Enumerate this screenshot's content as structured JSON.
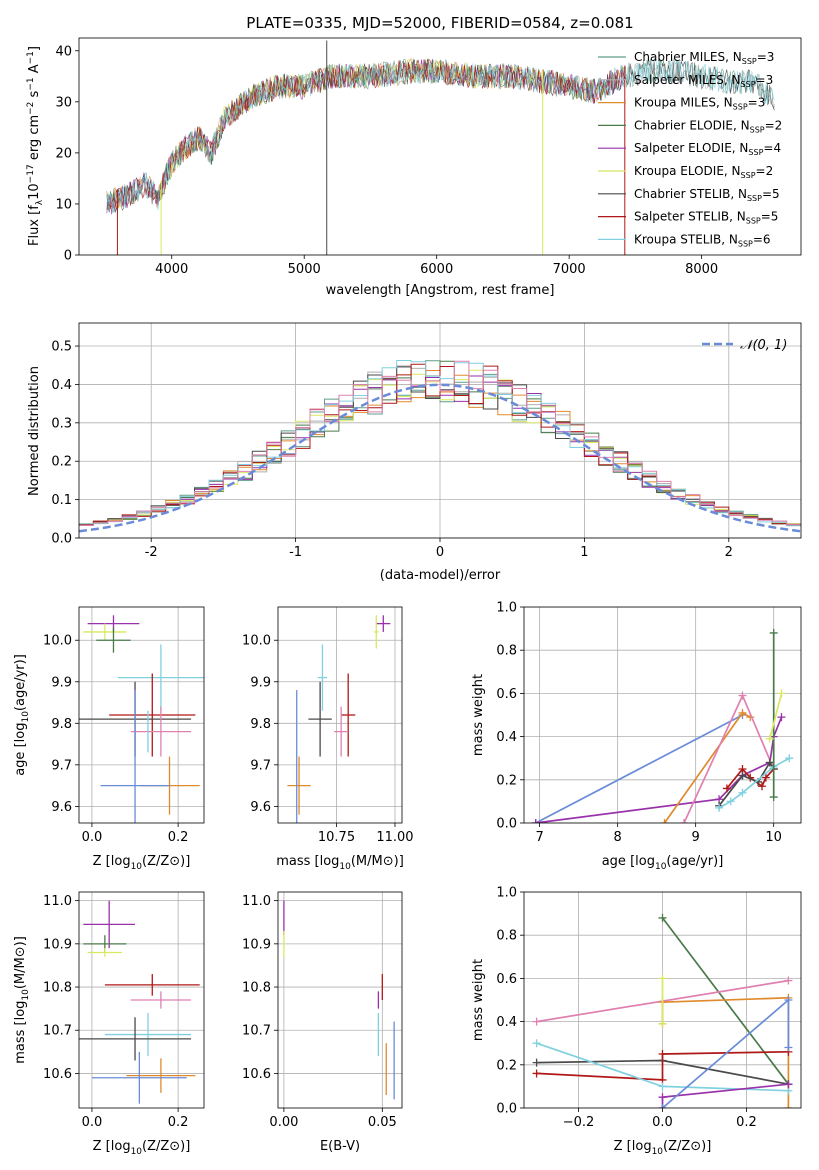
{
  "figure_title": "PLATE=0335, MJD=52000, FIBERID=0584, z=0.081",
  "colors": {
    "chab_miles": "#5e9e8c",
    "salp_miles": "#b0b0b0",
    "krou_miles": "#e08a2e",
    "chab_elodie": "#4a7a4a",
    "salp_elodie": "#9932aa",
    "krou_elodie": "#d8e860",
    "chab_stelib": "#4a4a4a",
    "salp_stelib": "#b01818",
    "krou_stelib": "#80d0e0",
    "pink": "#e080b0",
    "blue": "#6a8cd8",
    "gauss": "#6a8cd8"
  },
  "chart_data": [
    {
      "id": "spectrum",
      "type": "line",
      "title": "PLATE=0335, MJD=52000, FIBERID=0584, z=0.081",
      "xlabel": "wavelength [Angstrom, rest frame]",
      "ylabel": "Flux [f_λ 10^-17 erg cm^-2 s^-1 A^-1]",
      "xlim": [
        3300,
        8750
      ],
      "ylim": [
        0,
        42.5
      ],
      "xticks": [
        4000,
        5000,
        6000,
        7000,
        8000
      ],
      "yticks": [
        0,
        10,
        20,
        30,
        40
      ],
      "continuum_x": [
        3510,
        3600,
        3700,
        3800,
        3900,
        3950,
        4000,
        4100,
        4200,
        4300,
        4400,
        4600,
        4800,
        5000,
        5200,
        5500,
        5800,
        6000,
        6300,
        6600,
        6800,
        7000,
        7200,
        7400,
        7600,
        7800,
        8000,
        8200,
        8400,
        8550
      ],
      "continuum_y": [
        10,
        11,
        12,
        14,
        11,
        15,
        18,
        21,
        23,
        20,
        27,
        31,
        33,
        33,
        35,
        35,
        36,
        36,
        35,
        35,
        34,
        33,
        32,
        35,
        36,
        36,
        35,
        34,
        34,
        30
      ],
      "legend": [
        {
          "label": "Chabrier MILES, N",
          "sub": "SSP",
          "val": "=3",
          "color": "chab_miles"
        },
        {
          "label": "Salpeter MILES, N",
          "sub": "SSP",
          "val": "=3",
          "color": "salp_miles"
        },
        {
          "label": "Kroupa MILES, N",
          "sub": "SSP",
          "val": "=3",
          "color": "krou_miles"
        },
        {
          "label": "Chabrier ELODIE, N",
          "sub": "SSP",
          "val": "=2",
          "color": "chab_elodie"
        },
        {
          "label": "Salpeter ELODIE, N",
          "sub": "SSP",
          "val": "=4",
          "color": "salp_elodie"
        },
        {
          "label": "Kroupa ELODIE, N",
          "sub": "SSP",
          "val": "=2",
          "color": "krou_elodie"
        },
        {
          "label": "Chabrier STELIB, N",
          "sub": "SSP",
          "val": "=5",
          "color": "chab_stelib"
        },
        {
          "label": "Salpeter STELIB, N",
          "sub": "SSP",
          "val": "=5",
          "color": "salp_stelib"
        },
        {
          "label": "Kroupa STELIB, N",
          "sub": "SSP",
          "val": "=6",
          "color": "krou_stelib"
        }
      ]
    },
    {
      "id": "residuals",
      "type": "histogram",
      "xlabel": "(data-model)/error",
      "ylabel": "Normed distribution",
      "xlim": [
        -2.5,
        2.5
      ],
      "ylim": [
        0,
        0.56
      ],
      "xticks": [
        -2,
        -1,
        0,
        1,
        2
      ],
      "yticks": [
        0.0,
        0.1,
        0.2,
        0.3,
        0.4,
        0.5
      ],
      "bin_width": 0.1,
      "grid": true,
      "legend_label": "𝒩(0, 1)",
      "legend_position": "top-right"
    },
    {
      "id": "age_vs_Z",
      "type": "errorbar",
      "xlabel": "Z [log10(Z/Z⊙)]",
      "ylabel": "age  [log10(age/yr)]",
      "xlim": [
        -0.03,
        0.26
      ],
      "ylim": [
        9.56,
        10.08
      ],
      "xticks": [
        0.0,
        0.2
      ],
      "xticklabels": [
        "0.0",
        "0.2"
      ],
      "yticks": [
        9.6,
        9.7,
        9.8,
        9.9,
        10.0
      ],
      "yticklabels": [
        "9.6",
        "9.7",
        "9.8",
        "9.9",
        "10.0"
      ],
      "points": [
        {
          "x": 0.05,
          "y": 10.04,
          "xe": 0.06,
          "ye": 0.02,
          "color": "salp_elodie"
        },
        {
          "x": 0.03,
          "y": 10.02,
          "xe": 0.05,
          "ye": 0.02,
          "color": "krou_elodie"
        },
        {
          "x": 0.05,
          "y": 10.0,
          "xe": 0.04,
          "ye": 0.03,
          "color": "chab_elodie"
        },
        {
          "x": 0.16,
          "y": 9.91,
          "xe": 0.1,
          "ye": 0.08,
          "color": "krou_stelib"
        },
        {
          "x": 0.14,
          "y": 9.82,
          "xe": 0.1,
          "ye": 0.1,
          "color": "salp_stelib"
        },
        {
          "x": 0.1,
          "y": 9.81,
          "xe": 0.13,
          "ye": 0.09,
          "color": "chab_stelib"
        },
        {
          "x": 0.16,
          "y": 9.78,
          "xe": 0.07,
          "ye": 0.06,
          "color": "pink"
        },
        {
          "x": 0.18,
          "y": 9.65,
          "xe": 0.07,
          "ye": 0.07,
          "color": "krou_miles"
        },
        {
          "x": 0.1,
          "y": 9.65,
          "xe": 0.08,
          "ye": 0.23,
          "color": "blue"
        },
        {
          "x": 0.13,
          "y": 9.78,
          "xe": 0.0,
          "ye": 0.05,
          "color": "krou_stelib"
        }
      ]
    },
    {
      "id": "age_vs_mass",
      "type": "errorbar",
      "xlabel": "mass [log10(M/M⊙)]",
      "ylabel": "",
      "xlim": [
        10.5,
        11.03
      ],
      "ylim": [
        9.56,
        10.08
      ],
      "xticks": [
        10.75,
        11.0
      ],
      "xticklabels": [
        "10.75",
        "11.00"
      ],
      "yticks": [
        9.6,
        9.7,
        9.8,
        9.9,
        10.0
      ],
      "yticklabels": [
        "9.6",
        "9.7",
        "9.8",
        "9.9",
        "10.0"
      ],
      "points": [
        {
          "x": 10.95,
          "y": 10.04,
          "xe": 0.03,
          "ye": 0.02,
          "color": "salp_elodie"
        },
        {
          "x": 10.92,
          "y": 10.02,
          "xe": 0.01,
          "ye": 0.04,
          "color": "krou_elodie"
        },
        {
          "x": 10.69,
          "y": 9.91,
          "xe": 0.02,
          "ye": 0.08,
          "color": "krou_stelib"
        },
        {
          "x": 10.8,
          "y": 9.82,
          "xe": 0.03,
          "ye": 0.1,
          "color": "salp_stelib"
        },
        {
          "x": 10.68,
          "y": 9.81,
          "xe": 0.05,
          "ye": 0.09,
          "color": "chab_stelib"
        },
        {
          "x": 10.77,
          "y": 9.78,
          "xe": 0.03,
          "ye": 0.06,
          "color": "pink"
        },
        {
          "x": 10.59,
          "y": 9.65,
          "xe": 0.05,
          "ye": 0.07,
          "color": "krou_miles"
        },
        {
          "x": 10.58,
          "y": 9.65,
          "xe": 0.0,
          "ye": 0.23,
          "color": "blue"
        }
      ]
    },
    {
      "id": "weight_vs_age",
      "type": "line",
      "xlabel": "age  [log10(age/yr)]",
      "ylabel": "mass weight",
      "xlim": [
        6.8,
        10.35
      ],
      "ylim": [
        0.0,
        1.0
      ],
      "xticks": [
        7,
        8,
        9,
        10
      ],
      "xticklabels": [
        "7",
        "8",
        "9",
        "10"
      ],
      "yticks": [
        0.0,
        0.2,
        0.4,
        0.6,
        0.8,
        1.0
      ],
      "yticklabels": [
        "0.0",
        "0.2",
        "0.4",
        "0.6",
        "0.8",
        "1.0"
      ],
      "series": [
        {
          "color": "blue",
          "x": [
            6.95,
            9.6
          ],
          "y": [
            0.0,
            0.5
          ]
        },
        {
          "color": "salp_elodie",
          "x": [
            6.95,
            9.3,
            9.6,
            9.95,
            10.0,
            10.1
          ],
          "y": [
            0.0,
            0.11,
            0.22,
            0.28,
            0.4,
            0.49
          ]
        },
        {
          "color": "krou_miles",
          "x": [
            8.6,
            9.6,
            9.7
          ],
          "y": [
            0.0,
            0.51,
            0.49
          ]
        },
        {
          "color": "pink",
          "x": [
            8.85,
            9.6,
            10.0
          ],
          "y": [
            0.0,
            0.59,
            0.25
          ]
        },
        {
          "color": "salp_stelib",
          "x": [
            9.4,
            9.6,
            9.7,
            9.85,
            9.9,
            10.0
          ],
          "y": [
            0.16,
            0.25,
            0.21,
            0.17,
            0.21,
            0.25
          ]
        },
        {
          "color": "chab_stelib",
          "x": [
            9.3,
            9.6,
            9.8,
            9.95,
            10.0
          ],
          "y": [
            0.08,
            0.22,
            0.19,
            0.28,
            0.25
          ]
        },
        {
          "color": "krou_stelib",
          "x": [
            9.3,
            9.45,
            9.6,
            10.0,
            10.2
          ],
          "y": [
            0.07,
            0.1,
            0.14,
            0.26,
            0.3
          ]
        },
        {
          "color": "chab_elodie",
          "x": [
            10.0,
            10.0
          ],
          "y": [
            0.12,
            0.88
          ]
        },
        {
          "color": "krou_elodie",
          "x": [
            9.95,
            10.1
          ],
          "y": [
            0.39,
            0.6
          ]
        }
      ]
    },
    {
      "id": "mass_vs_Z",
      "type": "errorbar",
      "xlabel": "Z [log10(Z/Z⊙)]",
      "ylabel": "mass [log10(M/M⊙)]",
      "xlim": [
        -0.03,
        0.26
      ],
      "ylim": [
        10.52,
        11.02
      ],
      "xticks": [
        0.0,
        0.2
      ],
      "xticklabels": [
        "0.0",
        "0.2"
      ],
      "yticks": [
        10.6,
        10.7,
        10.8,
        10.9,
        11.0
      ],
      "yticklabels": [
        "10.6",
        "10.7",
        "10.8",
        "10.9",
        "11.0"
      ],
      "points": [
        {
          "x": 0.04,
          "y": 10.945,
          "xe": 0.06,
          "ye": 0.055,
          "color": "salp_elodie"
        },
        {
          "x": 0.03,
          "y": 10.9,
          "xe": 0.05,
          "ye": 0.02,
          "color": "chab_elodie"
        },
        {
          "x": 0.03,
          "y": 10.88,
          "xe": 0.04,
          "ye": 0.01,
          "color": "krou_elodie"
        },
        {
          "x": 0.14,
          "y": 10.805,
          "xe": 0.11,
          "ye": 0.025,
          "color": "salp_stelib"
        },
        {
          "x": 0.16,
          "y": 10.77,
          "xe": 0.07,
          "ye": 0.02,
          "color": "pink"
        },
        {
          "x": 0.13,
          "y": 10.69,
          "xe": 0.1,
          "ye": 0.05,
          "color": "krou_stelib"
        },
        {
          "x": 0.1,
          "y": 10.68,
          "xe": 0.13,
          "ye": 0.05,
          "color": "chab_stelib"
        },
        {
          "x": 0.16,
          "y": 10.595,
          "xe": 0.08,
          "ye": 0.04,
          "color": "krou_miles"
        },
        {
          "x": 0.11,
          "y": 10.59,
          "xe": 0.11,
          "ye": 0.06,
          "color": "blue"
        }
      ]
    },
    {
      "id": "mass_vs_ebv",
      "type": "errorbar",
      "xlabel": "E(B-V)",
      "ylabel": "",
      "xlim": [
        -0.003,
        0.06
      ],
      "ylim": [
        10.52,
        11.02
      ],
      "xticks": [
        0.0,
        0.05
      ],
      "xticklabels": [
        "0.00",
        "0.05"
      ],
      "yticks": [
        10.6,
        10.7,
        10.8,
        10.9,
        11.0
      ],
      "yticklabels": [
        "10.6",
        "10.7",
        "10.8",
        "10.9",
        "11.0"
      ],
      "points": [
        {
          "x": 0.0,
          "y": 10.96,
          "xe": 0.0,
          "ye": 0.04,
          "color": "salp_elodie"
        },
        {
          "x": 0.0,
          "y": 10.9,
          "xe": 0.0,
          "ye": 0.03,
          "color": "krou_elodie"
        },
        {
          "x": 0.05,
          "y": 10.8,
          "xe": 0.0,
          "ye": 0.03,
          "color": "salp_stelib"
        },
        {
          "x": 0.048,
          "y": 10.77,
          "xe": 0.0,
          "ye": 0.02,
          "color": "salp_elodie"
        },
        {
          "x": 0.048,
          "y": 10.69,
          "xe": 0.0,
          "ye": 0.05,
          "color": "krou_stelib"
        },
        {
          "x": 0.052,
          "y": 10.61,
          "xe": 0.0,
          "ye": 0.06,
          "color": "krou_miles"
        },
        {
          "x": 0.056,
          "y": 10.63,
          "xe": 0.0,
          "ye": 0.09,
          "color": "blue"
        }
      ]
    },
    {
      "id": "weight_vs_Z",
      "type": "line",
      "xlabel": "Z [log10(Z/Z⊙)]",
      "ylabel": "mass weight",
      "xlim": [
        -0.33,
        0.33
      ],
      "ylim": [
        0.0,
        1.0
      ],
      "xticks": [
        -0.2,
        0.0,
        0.2
      ],
      "xticklabels": [
        "−0.2",
        "0.0",
        "0.2"
      ],
      "yticks": [
        0.0,
        0.2,
        0.4,
        0.6,
        0.8,
        1.0
      ],
      "yticklabels": [
        "0.0",
        "0.2",
        "0.4",
        "0.6",
        "0.8",
        "1.0"
      ],
      "series": [
        {
          "color": "chab_elodie",
          "x": [
            0.0,
            0.3
          ],
          "y": [
            0.88,
            0.11
          ]
        },
        {
          "color": "pink",
          "x": [
            -0.3,
            0.3
          ],
          "y": [
            0.4,
            0.59
          ]
        },
        {
          "color": "krou_miles",
          "x": [
            0.0,
            0.0,
            0.3,
            0.3
          ],
          "y": [
            0.39,
            0.49,
            0.51,
            0.0
          ]
        },
        {
          "color": "krou_elodie",
          "x": [
            0.0,
            0.0
          ],
          "y": [
            0.39,
            0.6
          ]
        },
        {
          "color": "chab_stelib",
          "x": [
            -0.3,
            0.0,
            0.3
          ],
          "y": [
            0.21,
            0.22,
            0.11
          ]
        },
        {
          "color": "salp_stelib",
          "x": [
            -0.3,
            0.0,
            0.0,
            0.3
          ],
          "y": [
            0.16,
            0.13,
            0.25,
            0.26
          ]
        },
        {
          "color": "krou_stelib",
          "x": [
            -0.3,
            0.0,
            0.3
          ],
          "y": [
            0.3,
            0.1,
            0.08
          ]
        },
        {
          "color": "salp_elodie",
          "x": [
            0.0,
            0.0,
            0.3
          ],
          "y": [
            0.0,
            0.05,
            0.11
          ]
        },
        {
          "color": "blue",
          "x": [
            0.0,
            0.3,
            0.3
          ],
          "y": [
            0.0,
            0.5,
            0.28
          ]
        }
      ]
    }
  ]
}
